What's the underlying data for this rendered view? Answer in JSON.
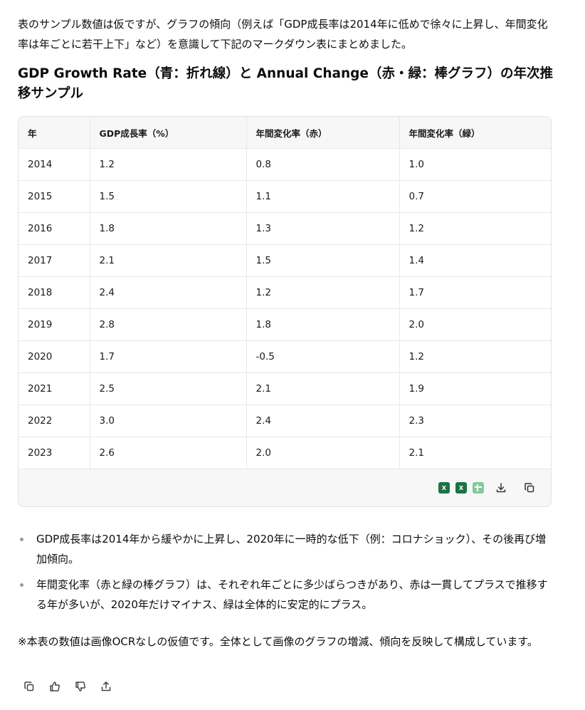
{
  "intro_text": "表のサンプル数値は仮ですが、グラフの傾向（例えば「GDP成長率は2014年に低めで徐々に上昇し、年間変化率は年ごとに若干上下」など）を意識して下記のマークダウン表にまとめました。",
  "heading": "GDP Growth Rate（青：折れ線）と Annual Change（赤・緑：棒グラフ）の年次推移サンプル",
  "table": {
    "headers": [
      "年",
      "GDP成長率（%）",
      "年間変化率（赤）",
      "年間変化率（緑）"
    ],
    "rows": [
      [
        "2014",
        "1.2",
        "0.8",
        "1.0"
      ],
      [
        "2015",
        "1.5",
        "1.1",
        "0.7"
      ],
      [
        "2016",
        "1.8",
        "1.3",
        "1.2"
      ],
      [
        "2017",
        "2.1",
        "1.5",
        "1.4"
      ],
      [
        "2018",
        "2.4",
        "1.2",
        "1.7"
      ],
      [
        "2019",
        "2.8",
        "1.8",
        "2.0"
      ],
      [
        "2020",
        "1.7",
        "-0.5",
        "1.2"
      ],
      [
        "2021",
        "2.5",
        "2.1",
        "1.9"
      ],
      [
        "2022",
        "3.0",
        "2.4",
        "2.3"
      ],
      [
        "2023",
        "2.6",
        "2.0",
        "2.1"
      ]
    ]
  },
  "toolbar": {
    "icons": [
      "excel-icon",
      "excel-icon",
      "google-sheets-icon",
      "download-icon",
      "copy-icon"
    ],
    "excel_letter": "X"
  },
  "bullets": [
    "GDP成長率は2014年から緩やかに上昇し、2020年に一時的な低下（例：コロナショック）、その後再び増加傾向。",
    "年間変化率（赤と緑の棒グラフ）は、それぞれ年ごとに多少ばらつきがあり、赤は一貫してプラスで推移する年が多いが、2020年だけマイナス、緑は全体的に安定的にプラス。"
  ],
  "note": "※本表の数値は画像OCRなしの仮値です。全体として画像のグラフの増減、傾向を反映して構成しています。",
  "actions": [
    "copy-icon",
    "thumbs-up-icon",
    "thumbs-down-icon",
    "share-icon"
  ]
}
